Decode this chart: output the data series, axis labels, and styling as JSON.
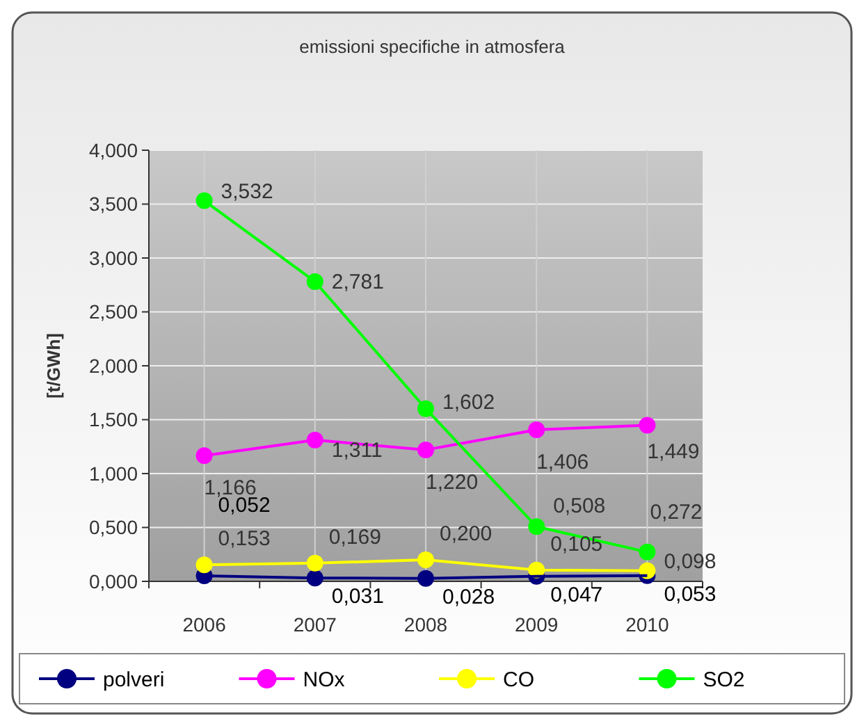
{
  "chart_data": {
    "type": "line",
    "title": "emissioni specifiche in atmosfera",
    "ylabel": "[t/GWh]",
    "categories": [
      "2006",
      "2007",
      "2008",
      "2009",
      "2010"
    ],
    "ylim": [
      0,
      4
    ],
    "yticks": [
      {
        "value": 0,
        "label": "0,000"
      },
      {
        "value": 0.5,
        "label": "0,500"
      },
      {
        "value": 1,
        "label": "1,000"
      },
      {
        "value": 1.5,
        "label": "1,500"
      },
      {
        "value": 2,
        "label": "2,000"
      },
      {
        "value": 2.5,
        "label": "2,500"
      },
      {
        "value": 3,
        "label": "3,000"
      },
      {
        "value": 3.5,
        "label": "3,500"
      },
      {
        "value": 4,
        "label": "4,000"
      }
    ],
    "grid": true,
    "legend": "bottom",
    "marker": "circle",
    "line_style": "solid",
    "series": [
      {
        "name": "polveri",
        "color": "#000080",
        "values": [
          0.052,
          0.031,
          0.028,
          0.047,
          0.053
        ],
        "value_labels": [
          "0,052",
          "0,031",
          "0,028",
          "0,047",
          "0,053"
        ]
      },
      {
        "name": "NOx",
        "color": "#ff00ff",
        "values": [
          1.166,
          1.311,
          1.22,
          1.406,
          1.449
        ],
        "value_labels": [
          "1,166",
          "1,311",
          "1,220",
          "1,406",
          "1,449"
        ]
      },
      {
        "name": "CO",
        "color": "#ffff00",
        "values": [
          0.153,
          0.169,
          0.2,
          0.105,
          0.098
        ],
        "value_labels": [
          "0,153",
          "0,169",
          "0,200",
          "0,105",
          "0,098"
        ]
      },
      {
        "name": "SO2",
        "color": "#00ff00",
        "values": [
          3.532,
          2.781,
          1.602,
          0.508,
          0.272
        ],
        "value_labels": [
          "3,532",
          "2,781",
          "1,602",
          "0,508",
          "0,272"
        ]
      }
    ]
  }
}
